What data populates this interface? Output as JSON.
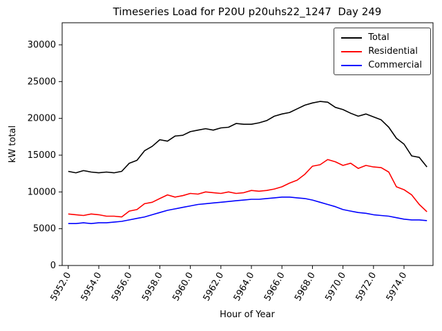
{
  "figure": {
    "title": "Timeseries Load for P20U p20uhs22_1247  Day 249",
    "xlabel": "Hour of Year",
    "ylabel": "kW total"
  },
  "chart_data": {
    "type": "line",
    "title": "Timeseries Load for P20U p20uhs22_1247  Day 249",
    "xlabel": "Hour of Year",
    "ylabel": "kW total",
    "grid": false,
    "legend_position": "upper right",
    "xlim": [
      5951.6,
      5975.9
    ],
    "ylim": [
      0,
      33000
    ],
    "x_ticks": [
      5952,
      5954,
      5956,
      5958,
      5960,
      5962,
      5964,
      5966,
      5968,
      5970,
      5972,
      5974
    ],
    "x_tick_labels": [
      "5952.0",
      "5954.0",
      "5956.0",
      "5958.0",
      "5960.0",
      "5962.0",
      "5964.0",
      "5966.0",
      "5968.0",
      "5970.0",
      "5972.0",
      "5974.0"
    ],
    "y_ticks": [
      0,
      5000,
      10000,
      15000,
      20000,
      25000,
      30000
    ],
    "y_tick_labels": [
      "0",
      "5000",
      "10000",
      "15000",
      "20000",
      "25000",
      "30000"
    ],
    "x": [
      5952.0,
      5952.5,
      5953.0,
      5953.5,
      5954.0,
      5954.5,
      5955.0,
      5955.5,
      5956.0,
      5956.5,
      5957.0,
      5957.5,
      5958.0,
      5958.5,
      5959.0,
      5959.5,
      5960.0,
      5960.5,
      5961.0,
      5961.5,
      5962.0,
      5962.5,
      5963.0,
      5963.5,
      5964.0,
      5964.5,
      5965.0,
      5965.5,
      5966.0,
      5966.5,
      5967.0,
      5967.5,
      5968.0,
      5968.5,
      5969.0,
      5969.5,
      5970.0,
      5970.5,
      5971.0,
      5971.5,
      5972.0,
      5972.5,
      5973.0,
      5973.5,
      5974.0,
      5974.5,
      5975.0,
      5975.5
    ],
    "series": [
      {
        "name": "Total",
        "color": "#000000",
        "values": [
          12800,
          12600,
          12900,
          12700,
          12600,
          12700,
          12600,
          12800,
          13900,
          14300,
          15600,
          16200,
          17100,
          16900,
          17600,
          17700,
          18200,
          18400,
          18600,
          18400,
          18700,
          18800,
          19300,
          19200,
          19200,
          19400,
          19700,
          20300,
          20600,
          20800,
          21300,
          21800,
          22100,
          22300,
          22200,
          21500,
          21200,
          20700,
          20300,
          20600,
          20200,
          19800,
          18800,
          17300,
          16500,
          14900,
          14700,
          13400
        ]
      },
      {
        "name": "Residential",
        "color": "#ff0000",
        "values": [
          7000,
          6900,
          6800,
          7000,
          6900,
          6700,
          6700,
          6600,
          7400,
          7600,
          8400,
          8600,
          9100,
          9600,
          9300,
          9500,
          9800,
          9700,
          10000,
          9900,
          9800,
          10000,
          9800,
          9900,
          10200,
          10100,
          10200,
          10400,
          10700,
          11200,
          11600,
          12400,
          13500,
          13700,
          14400,
          14100,
          13600,
          13900,
          13200,
          13600,
          13400,
          13300,
          12700,
          10700,
          10300,
          9600,
          8300,
          7300
        ]
      },
      {
        "name": "Commercial",
        "color": "#0000ff",
        "values": [
          5700,
          5700,
          5800,
          5700,
          5800,
          5800,
          5900,
          6000,
          6200,
          6400,
          6600,
          6900,
          7200,
          7500,
          7700,
          7900,
          8100,
          8300,
          8400,
          8500,
          8600,
          8700,
          8800,
          8900,
          9000,
          9000,
          9100,
          9200,
          9300,
          9300,
          9200,
          9100,
          8900,
          8600,
          8300,
          8000,
          7600,
          7400,
          7200,
          7100,
          6900,
          6800,
          6700,
          6500,
          6300,
          6200,
          6200,
          6100
        ]
      }
    ]
  }
}
